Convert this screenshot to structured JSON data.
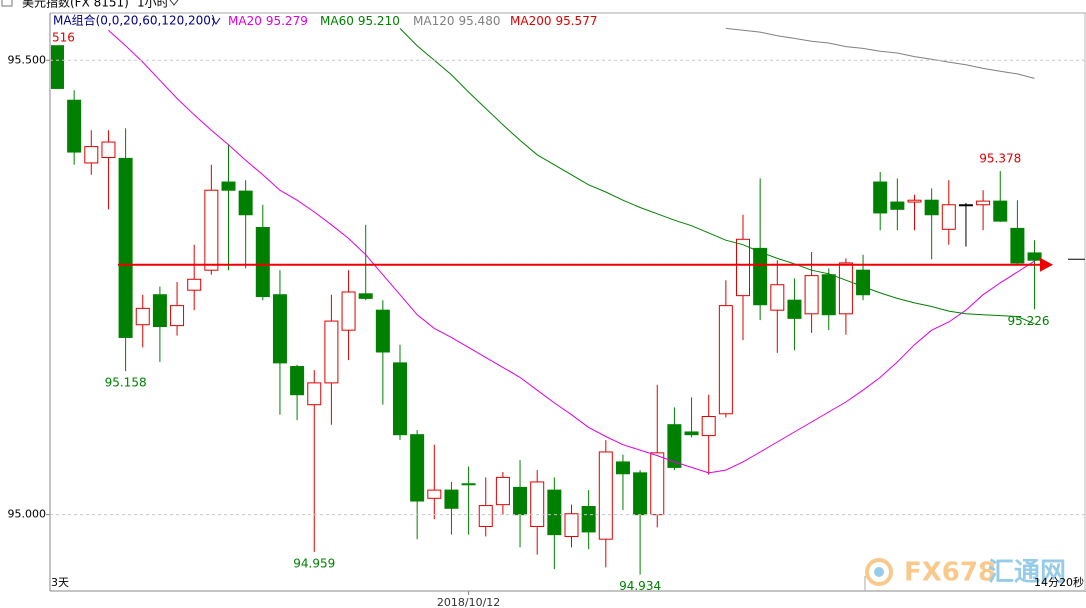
{
  "header": {
    "title": "美元指数(FX 8151)",
    "period": "1小时"
  },
  "chart_data": {
    "type": "candlestick",
    "indicator_label": "MA组合(0,0,20,60,120,200)",
    "top_label": "516",
    "x": [
      null,
      null,
      null,
      null,
      null,
      null,
      null,
      null,
      null,
      null,
      null,
      null,
      null,
      null,
      null,
      null,
      null,
      null,
      null,
      null,
      null,
      null,
      null,
      null,
      "2018/10/12",
      null,
      null,
      null,
      null,
      null,
      null,
      null,
      null,
      null,
      null,
      null,
      null,
      null,
      null,
      null,
      null,
      null,
      null,
      null,
      null,
      null,
      null,
      null,
      null,
      null,
      null,
      null,
      null,
      null,
      null,
      null,
      null,
      null
    ],
    "open": [
      95.516,
      95.456,
      95.387,
      95.393,
      95.392,
      95.209,
      95.242,
      95.208,
      95.247,
      95.269,
      95.366,
      95.356,
      95.316,
      95.242,
      95.163,
      95.121,
      95.145,
      95.203,
      95.243,
      95.225,
      95.167,
      95.088,
      95.018,
      95.027,
      95.034,
      94.987,
      95.011,
      95.03,
      94.987,
      95.027,
      94.976,
      95.009,
      94.973,
      95.058,
      95.046,
      95.0,
      95.099,
      95.091,
      95.087,
      95.111,
      95.241,
      95.293,
      95.225,
      95.236,
      95.221,
      95.264,
      95.221,
      95.269,
      95.366,
      95.344,
      95.344,
      95.346,
      95.314,
      95.341,
      95.341,
      95.345,
      95.315,
      95.288
    ],
    "high": [
      95.516,
      95.467,
      95.423,
      95.423,
      95.425,
      95.242,
      95.251,
      95.256,
      95.297,
      95.385,
      95.407,
      95.368,
      95.341,
      95.269,
      95.165,
      95.159,
      95.242,
      95.269,
      95.319,
      95.236,
      95.187,
      95.093,
      95.077,
      95.036,
      95.053,
      95.041,
      95.047,
      95.06,
      95.049,
      95.041,
      95.011,
      95.027,
      95.082,
      95.066,
      95.049,
      95.143,
      95.118,
      95.129,
      95.132,
      95.258,
      95.33,
      95.37,
      95.28,
      95.26,
      95.289,
      95.271,
      95.282,
      95.286,
      95.377,
      95.37,
      95.352,
      95.359,
      95.368,
      95.343,
      95.357,
      95.378,
      95.346,
      95.302
    ],
    "low": [
      95.469,
      95.385,
      95.374,
      95.336,
      95.158,
      95.184,
      95.168,
      95.197,
      95.225,
      95.264,
      95.269,
      95.271,
      95.236,
      95.11,
      95.104,
      94.959,
      95.099,
      95.17,
      95.236,
      95.121,
      95.082,
      94.973,
      94.995,
      94.978,
      94.978,
      94.976,
      95.0,
      94.964,
      94.956,
      94.94,
      94.964,
      94.962,
      94.942,
      95.005,
      94.934,
      94.986,
      95.049,
      95.085,
      95.044,
      95.107,
      95.192,
      95.214,
      95.178,
      95.181,
      95.2,
      95.203,
      95.198,
      95.236,
      95.313,
      95.313,
      95.313,
      95.281,
      95.297,
      95.295,
      95.313,
      95.322,
      95.274,
      95.226
    ],
    "close": [
      95.469,
      95.399,
      95.405,
      95.41,
      95.195,
      95.227,
      95.207,
      95.23,
      95.259,
      95.357,
      95.357,
      95.33,
      95.24,
      95.167,
      95.132,
      95.145,
      95.213,
      95.245,
      95.238,
      95.179,
      95.088,
      95.015,
      95.027,
      95.007,
      95.033,
      95.01,
      95.041,
      95.0,
      95.036,
      94.978,
      95.001,
      94.981,
      95.069,
      95.045,
      95.0,
      95.068,
      95.052,
      95.088,
      95.108,
      95.23,
      95.303,
      95.231,
      95.253,
      95.216,
      95.263,
      95.22,
      95.277,
      95.242,
      95.332,
      95.336,
      95.346,
      95.33,
      95.341,
      95.341,
      95.345,
      95.323,
      95.277,
      95.28
    ],
    "up_color": "#e00000",
    "down_color": "#008000",
    "flat_color": "#000000",
    "series": [
      {
        "name": "MA20",
        "legend_value": "95.279",
        "color": "#e000e0",
        "values": [
          null,
          null,
          null,
          95.533,
          95.516,
          95.498,
          95.478,
          95.458,
          95.44,
          95.423,
          95.407,
          95.39,
          95.374,
          95.357,
          95.346,
          95.333,
          95.319,
          95.304,
          95.286,
          95.264,
          95.242,
          95.22,
          95.205,
          95.195,
          95.184,
          95.173,
          95.162,
          95.151,
          95.137,
          95.123,
          95.11,
          95.096,
          95.086,
          95.077,
          95.071,
          95.065,
          95.058,
          95.052,
          95.046,
          95.049,
          95.058,
          95.069,
          95.08,
          95.091,
          95.102,
          95.113,
          95.124,
          95.137,
          95.151,
          95.168,
          95.187,
          95.203,
          95.212,
          95.225,
          95.242,
          95.255,
          95.267,
          95.279
        ]
      },
      {
        "name": "MA60",
        "legend_value": "95.210",
        "color": "#008000",
        "values": [
          null,
          null,
          null,
          null,
          null,
          null,
          null,
          null,
          null,
          null,
          null,
          null,
          null,
          null,
          null,
          null,
          null,
          null,
          null,
          null,
          95.535,
          95.516,
          95.5,
          95.484,
          95.465,
          95.447,
          95.429,
          95.412,
          95.396,
          95.385,
          95.374,
          95.363,
          95.355,
          95.346,
          95.338,
          95.331,
          95.324,
          95.318,
          95.31,
          95.302,
          95.297,
          95.289,
          95.282,
          95.276,
          95.269,
          95.265,
          95.258,
          95.251,
          95.244,
          95.238,
          95.233,
          95.229,
          95.224,
          95.221,
          95.22,
          95.219,
          95.218,
          95.21
        ]
      },
      {
        "name": "MA120",
        "legend_value": "95.480",
        "color": "#808080",
        "values": [
          null,
          null,
          null,
          null,
          null,
          null,
          null,
          null,
          null,
          null,
          null,
          null,
          null,
          null,
          null,
          null,
          null,
          null,
          null,
          null,
          null,
          null,
          null,
          null,
          null,
          null,
          null,
          null,
          null,
          null,
          null,
          null,
          null,
          null,
          null,
          null,
          null,
          null,
          null,
          95.535,
          95.533,
          95.531,
          95.527,
          95.524,
          95.521,
          95.519,
          95.515,
          95.513,
          95.51,
          95.508,
          95.504,
          95.501,
          95.498,
          95.495,
          95.491,
          95.488,
          95.485,
          95.48
        ]
      },
      {
        "name": "MA200",
        "legend_value": "95.577",
        "color": "#e00000",
        "values": [
          null,
          null,
          null,
          null,
          null,
          null,
          null,
          null,
          null,
          null,
          null,
          null,
          null,
          null,
          null,
          null,
          null,
          null,
          null,
          null,
          null,
          null,
          null,
          null,
          null,
          null,
          null,
          null,
          null,
          null,
          null,
          null,
          null,
          null,
          null,
          null,
          null,
          null,
          null,
          null,
          null,
          null,
          null,
          null,
          null,
          null,
          null,
          null,
          null,
          null,
          null,
          null,
          null,
          null,
          null,
          null,
          null,
          null
        ]
      }
    ],
    "annotations": [
      {
        "field": "low",
        "index": 4
      },
      {
        "field": "low",
        "index": 15
      },
      {
        "field": "low",
        "index": 34
      },
      {
        "field": "high",
        "index": 55
      },
      {
        "field": "low",
        "index": 57
      }
    ],
    "reference_line": 95.275,
    "reference_color": "#ee0000",
    "price_marker": 95.281,
    "ylim": [
      94.916,
      95.552
    ],
    "yticks": [
      {
        "value": 95,
        "label": "95.000"
      },
      {
        "value": 95.5,
        "label": "95.500"
      }
    ],
    "grid": true
  },
  "footer": {
    "left": "3天",
    "right": "14分20秒"
  },
  "watermark": {
    "brand": "FX678",
    "name": "汇通网"
  }
}
